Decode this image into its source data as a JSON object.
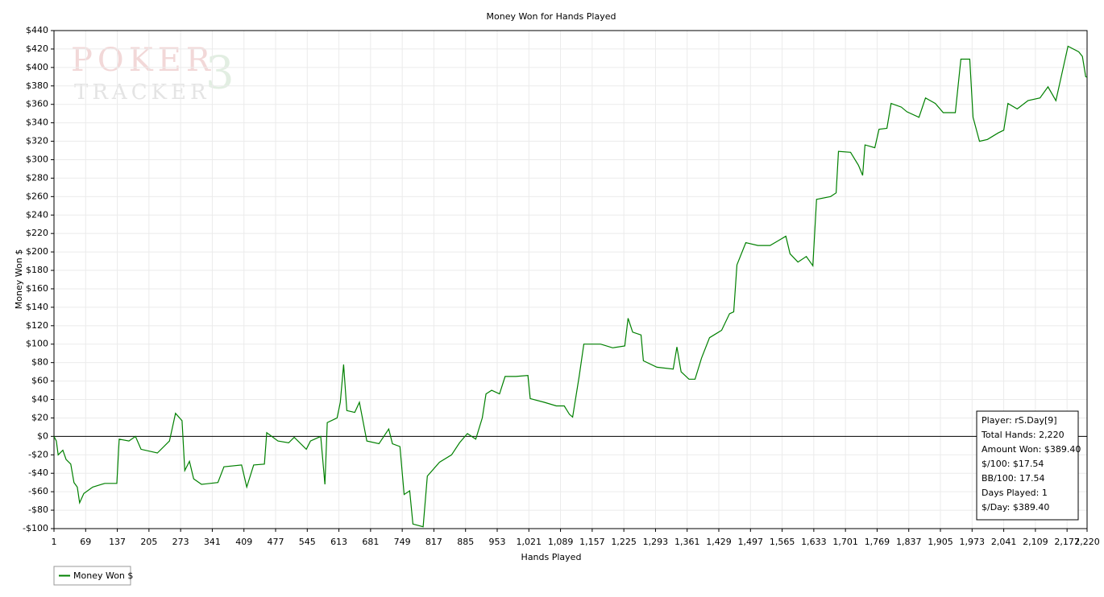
{
  "chart_data": {
    "type": "line",
    "title": "Money Won for Hands Played",
    "xlabel": "Hands Played",
    "ylabel": "Money Won $",
    "watermark": [
      "POKER",
      "TRACKER",
      "3"
    ],
    "xlim": [
      1,
      2220
    ],
    "ylim": [
      -100,
      440
    ],
    "grid": true,
    "legend": "bottom-left",
    "xticks": [
      1,
      69,
      137,
      205,
      273,
      341,
      409,
      477,
      545,
      613,
      681,
      749,
      817,
      885,
      953,
      {
        "value": 1021,
        "label": "1,021"
      },
      {
        "value": 1089,
        "label": "1,089"
      },
      {
        "value": 1157,
        "label": "1,157"
      },
      {
        "value": 1225,
        "label": "1,225"
      },
      {
        "value": 1293,
        "label": "1,293"
      },
      {
        "value": 1361,
        "label": "1,361"
      },
      {
        "value": 1429,
        "label": "1,429"
      },
      {
        "value": 1497,
        "label": "1,497"
      },
      {
        "value": 1565,
        "label": "1,565"
      },
      {
        "value": 1633,
        "label": "1,633"
      },
      {
        "value": 1701,
        "label": "1,701"
      },
      {
        "value": 1769,
        "label": "1,769"
      },
      {
        "value": 1837,
        "label": "1,837"
      },
      {
        "value": 1905,
        "label": "1,905"
      },
      {
        "value": 1973,
        "label": "1,973"
      },
      {
        "value": 2041,
        "label": "2,041"
      },
      {
        "value": 2109,
        "label": "2,109"
      },
      {
        "value": 2177,
        "label": "2,177"
      },
      {
        "value": 2220,
        "label": "2,220"
      }
    ],
    "yticks": [
      {
        "value": -100,
        "label": "-$100"
      },
      {
        "value": -80,
        "label": "-$80"
      },
      {
        "value": -60,
        "label": "-$60"
      },
      {
        "value": -40,
        "label": "-$40"
      },
      {
        "value": -20,
        "label": "-$20"
      },
      {
        "value": 0,
        "label": "$0"
      },
      {
        "value": 20,
        "label": "$20"
      },
      {
        "value": 40,
        "label": "$40"
      },
      {
        "value": 60,
        "label": "$60"
      },
      {
        "value": 80,
        "label": "$80"
      },
      {
        "value": 100,
        "label": "$100"
      },
      {
        "value": 120,
        "label": "$120"
      },
      {
        "value": 140,
        "label": "$140"
      },
      {
        "value": 160,
        "label": "$160"
      },
      {
        "value": 180,
        "label": "$180"
      },
      {
        "value": 200,
        "label": "$200"
      },
      {
        "value": 220,
        "label": "$220"
      },
      {
        "value": 240,
        "label": "$240"
      },
      {
        "value": 260,
        "label": "$260"
      },
      {
        "value": 280,
        "label": "$280"
      },
      {
        "value": 300,
        "label": "$300"
      },
      {
        "value": 320,
        "label": "$320"
      },
      {
        "value": 340,
        "label": "$340"
      },
      {
        "value": 360,
        "label": "$360"
      },
      {
        "value": 380,
        "label": "$380"
      },
      {
        "value": 400,
        "label": "$400"
      },
      {
        "value": 420,
        "label": "$420"
      },
      {
        "value": 440,
        "label": "$440"
      }
    ],
    "x": [
      1,
      6,
      10,
      20,
      27,
      37,
      44,
      51,
      56,
      65,
      84,
      110,
      136,
      141,
      162,
      176,
      188,
      223,
      249,
      262,
      276,
      282,
      292,
      301,
      318,
      353,
      366,
      404,
      415,
      430,
      453,
      458,
      482,
      505,
      517,
      543,
      552,
      574,
      583,
      588,
      609,
      616,
      623,
      630,
      647,
      657,
      673,
      699,
      720,
      728,
      744,
      753,
      765,
      772,
      794,
      803,
      829,
      855,
      872,
      889,
      907,
      921,
      929,
      941,
      958,
      970,
      993,
      1019,
      1024,
      1054,
      1080,
      1097,
      1108,
      1115,
      1129,
      1139,
      1175,
      1201,
      1227,
      1234,
      1244,
      1262,
      1267,
      1296,
      1331,
      1339,
      1348,
      1365,
      1378,
      1392,
      1409,
      1435,
      1452,
      1461,
      1468,
      1487,
      1513,
      1539,
      1556,
      1573,
      1582,
      1599,
      1617,
      1631,
      1639,
      1669,
      1681,
      1686,
      1712,
      1729,
      1738,
      1743,
      1764,
      1773,
      1790,
      1799,
      1821,
      1833,
      1859,
      1873,
      1894,
      1911,
      1937,
      1949,
      1968,
      1975,
      1989,
      2006,
      2029,
      2041,
      2050,
      2070,
      2093,
      2119,
      2136,
      2153,
      2179,
      2202,
      2210,
      2217,
      2220
    ],
    "series": [
      {
        "name": "Money Won $",
        "color": "#008000",
        "values": [
          0,
          -5,
          -20,
          -15,
          -25,
          -30,
          -50,
          -55,
          -72,
          -62,
          -55,
          -51,
          -51,
          -3,
          -5,
          0,
          -14,
          -18,
          -5,
          25,
          17,
          -37,
          -27,
          -46,
          -52,
          -50,
          -33,
          -31,
          -55,
          -31,
          -30,
          4,
          -5,
          -7,
          -1,
          -14,
          -5,
          0,
          -52,
          15,
          20,
          37,
          78,
          28,
          26,
          37,
          -5,
          -8,
          8,
          -8,
          -11,
          -63,
          -59,
          -95,
          -98,
          -43,
          -28,
          -20,
          -7,
          3,
          -3,
          20,
          46,
          50,
          46,
          65,
          65,
          66,
          41,
          37,
          33,
          33,
          24,
          21,
          65,
          100,
          100,
          96,
          98,
          128,
          113,
          110,
          82,
          75,
          73,
          97,
          70,
          62,
          62,
          85,
          107,
          115,
          133,
          135,
          186,
          210,
          207,
          207,
          212,
          217,
          198,
          189,
          195,
          185,
          257,
          260,
          264,
          309,
          308,
          294,
          283,
          316,
          313,
          333,
          334,
          361,
          357,
          352,
          346,
          367,
          361,
          351,
          351,
          409,
          409,
          346,
          320,
          322,
          329,
          332,
          361,
          355,
          364,
          367,
          379,
          364,
          423,
          417,
          412,
          390,
          389.4
        ]
      }
    ],
    "info_box": [
      "Player: rS.Day[9]",
      "Total Hands: 2,220",
      "Amount Won: $389.40",
      "$/100: $17.54",
      "BB/100: 17.54",
      "Days Played: 1",
      "$/Day: $389.40"
    ]
  }
}
